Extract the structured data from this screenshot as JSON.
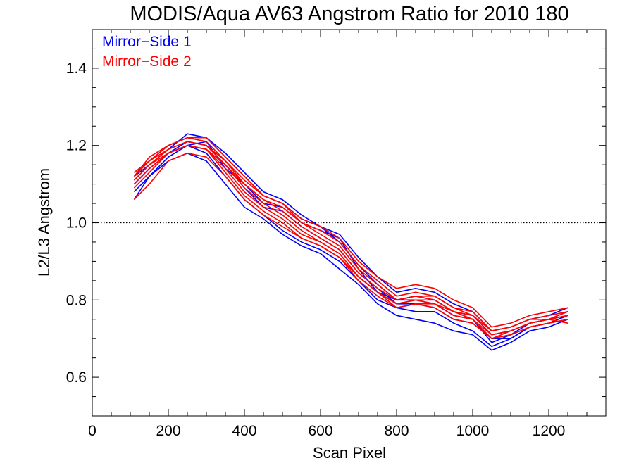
{
  "chart_data": {
    "type": "line",
    "title": "MODIS/Aqua AV63 Angstrom Ratio for 2010 180",
    "xlabel": "Scan Pixel",
    "ylabel": "L2/L3 Angstrom",
    "xlim": [
      0,
      1350
    ],
    "ylim": [
      0.5,
      1.5
    ],
    "x_ticks": [
      0,
      200,
      400,
      600,
      800,
      1000,
      1200
    ],
    "y_ticks": [
      0.6,
      0.8,
      1.0,
      1.2,
      1.4
    ],
    "x_tick_labels": [
      "0",
      "200",
      "400",
      "600",
      "800",
      "1000",
      "1200"
    ],
    "y_tick_labels": [
      "0.6",
      "0.8",
      "1.0",
      "1.2",
      "1.4"
    ],
    "reference_line": 1.0,
    "legend_position": "top-left",
    "x": [
      110,
      150,
      200,
      250,
      300,
      350,
      400,
      450,
      500,
      550,
      600,
      650,
      700,
      750,
      800,
      850,
      900,
      950,
      1000,
      1050,
      1100,
      1150,
      1200,
      1250
    ],
    "series": [
      {
        "name": "Mirror−Side 1",
        "color": "#0000ff",
        "values": [
          [
            1.13,
            1.16,
            1.2,
            1.22,
            1.22,
            1.17,
            1.12,
            1.07,
            1.05,
            1.01,
            0.99,
            0.95,
            0.89,
            0.84,
            0.8,
            0.81,
            0.8,
            0.77,
            0.76,
            0.71,
            0.72,
            0.74,
            0.75,
            0.77
          ],
          [
            1.1,
            1.14,
            1.18,
            1.21,
            1.2,
            1.15,
            1.09,
            1.04,
            1.03,
            0.99,
            0.96,
            0.93,
            0.87,
            0.83,
            0.79,
            0.79,
            0.78,
            0.75,
            0.74,
            0.7,
            0.7,
            0.73,
            0.74,
            0.76
          ],
          [
            1.08,
            1.12,
            1.17,
            1.2,
            1.21,
            1.14,
            1.1,
            1.05,
            1.04,
            1.0,
            0.98,
            0.96,
            0.88,
            0.82,
            0.8,
            0.8,
            0.79,
            0.76,
            0.75,
            0.69,
            0.71,
            0.74,
            0.75,
            0.76
          ],
          [
            1.06,
            1.12,
            1.16,
            1.18,
            1.16,
            1.1,
            1.04,
            1.01,
            0.97,
            0.94,
            0.92,
            0.88,
            0.84,
            0.79,
            0.76,
            0.75,
            0.74,
            0.72,
            0.71,
            0.67,
            0.69,
            0.72,
            0.73,
            0.75
          ],
          [
            1.12,
            1.15,
            1.19,
            1.23,
            1.22,
            1.18,
            1.13,
            1.08,
            1.06,
            1.02,
            0.99,
            0.97,
            0.91,
            0.86,
            0.82,
            0.83,
            0.82,
            0.79,
            0.77,
            0.72,
            0.73,
            0.75,
            0.76,
            0.78
          ],
          [
            1.1,
            1.14,
            1.18,
            1.2,
            1.18,
            1.12,
            1.06,
            1.02,
            0.98,
            0.95,
            0.93,
            0.9,
            0.85,
            0.8,
            0.78,
            0.77,
            0.77,
            0.74,
            0.72,
            0.68,
            0.7,
            0.73,
            0.74,
            0.76
          ]
        ]
      },
      {
        "name": "Mirror−Side 2",
        "color": "#ff0000",
        "values": [
          [
            1.12,
            1.17,
            1.2,
            1.22,
            1.21,
            1.16,
            1.11,
            1.07,
            1.05,
            1.0,
            0.98,
            0.95,
            0.89,
            0.85,
            0.81,
            0.82,
            0.81,
            0.78,
            0.77,
            0.72,
            0.73,
            0.75,
            0.76,
            0.77
          ],
          [
            1.11,
            1.15,
            1.19,
            1.21,
            1.2,
            1.15,
            1.1,
            1.06,
            1.04,
            1.0,
            0.97,
            0.94,
            0.88,
            0.84,
            0.8,
            0.81,
            0.8,
            0.77,
            0.76,
            0.71,
            0.72,
            0.74,
            0.75,
            0.76
          ],
          [
            1.09,
            1.13,
            1.18,
            1.2,
            1.19,
            1.14,
            1.08,
            1.04,
            1.01,
            0.97,
            0.95,
            0.92,
            0.86,
            0.82,
            0.79,
            0.8,
            0.79,
            0.76,
            0.75,
            0.7,
            0.71,
            0.73,
            0.74,
            0.75
          ],
          [
            1.06,
            1.1,
            1.16,
            1.18,
            1.17,
            1.12,
            1.06,
            1.02,
            0.99,
            0.96,
            0.94,
            0.91,
            0.85,
            0.81,
            0.78,
            0.79,
            0.78,
            0.75,
            0.74,
            0.7,
            0.71,
            0.73,
            0.74,
            0.75
          ],
          [
            1.13,
            1.16,
            1.2,
            1.22,
            1.22,
            1.17,
            1.12,
            1.07,
            1.05,
            1.01,
            0.99,
            0.96,
            0.9,
            0.86,
            0.83,
            0.84,
            0.83,
            0.8,
            0.78,
            0.73,
            0.74,
            0.76,
            0.77,
            0.78
          ],
          [
            1.1,
            1.14,
            1.18,
            1.2,
            1.19,
            1.13,
            1.07,
            1.03,
            1.0,
            0.96,
            0.94,
            0.91,
            0.86,
            0.82,
            0.79,
            0.8,
            0.8,
            0.77,
            0.75,
            0.71,
            0.72,
            0.74,
            0.75,
            0.76
          ],
          [
            1.12,
            1.16,
            1.19,
            1.21,
            1.2,
            1.16,
            1.1,
            1.06,
            1.03,
            0.99,
            0.96,
            0.93,
            0.87,
            0.83,
            0.8,
            0.81,
            0.81,
            0.78,
            0.76,
            0.72,
            0.73,
            0.75,
            0.75,
            0.77
          ],
          [
            1.11,
            1.15,
            1.18,
            1.2,
            1.19,
            1.15,
            1.09,
            1.05,
            1.02,
            0.98,
            0.95,
            0.92,
            0.86,
            0.82,
            0.78,
            0.79,
            0.79,
            0.77,
            0.75,
            0.7,
            0.72,
            0.74,
            0.75,
            0.74
          ]
        ]
      }
    ]
  }
}
